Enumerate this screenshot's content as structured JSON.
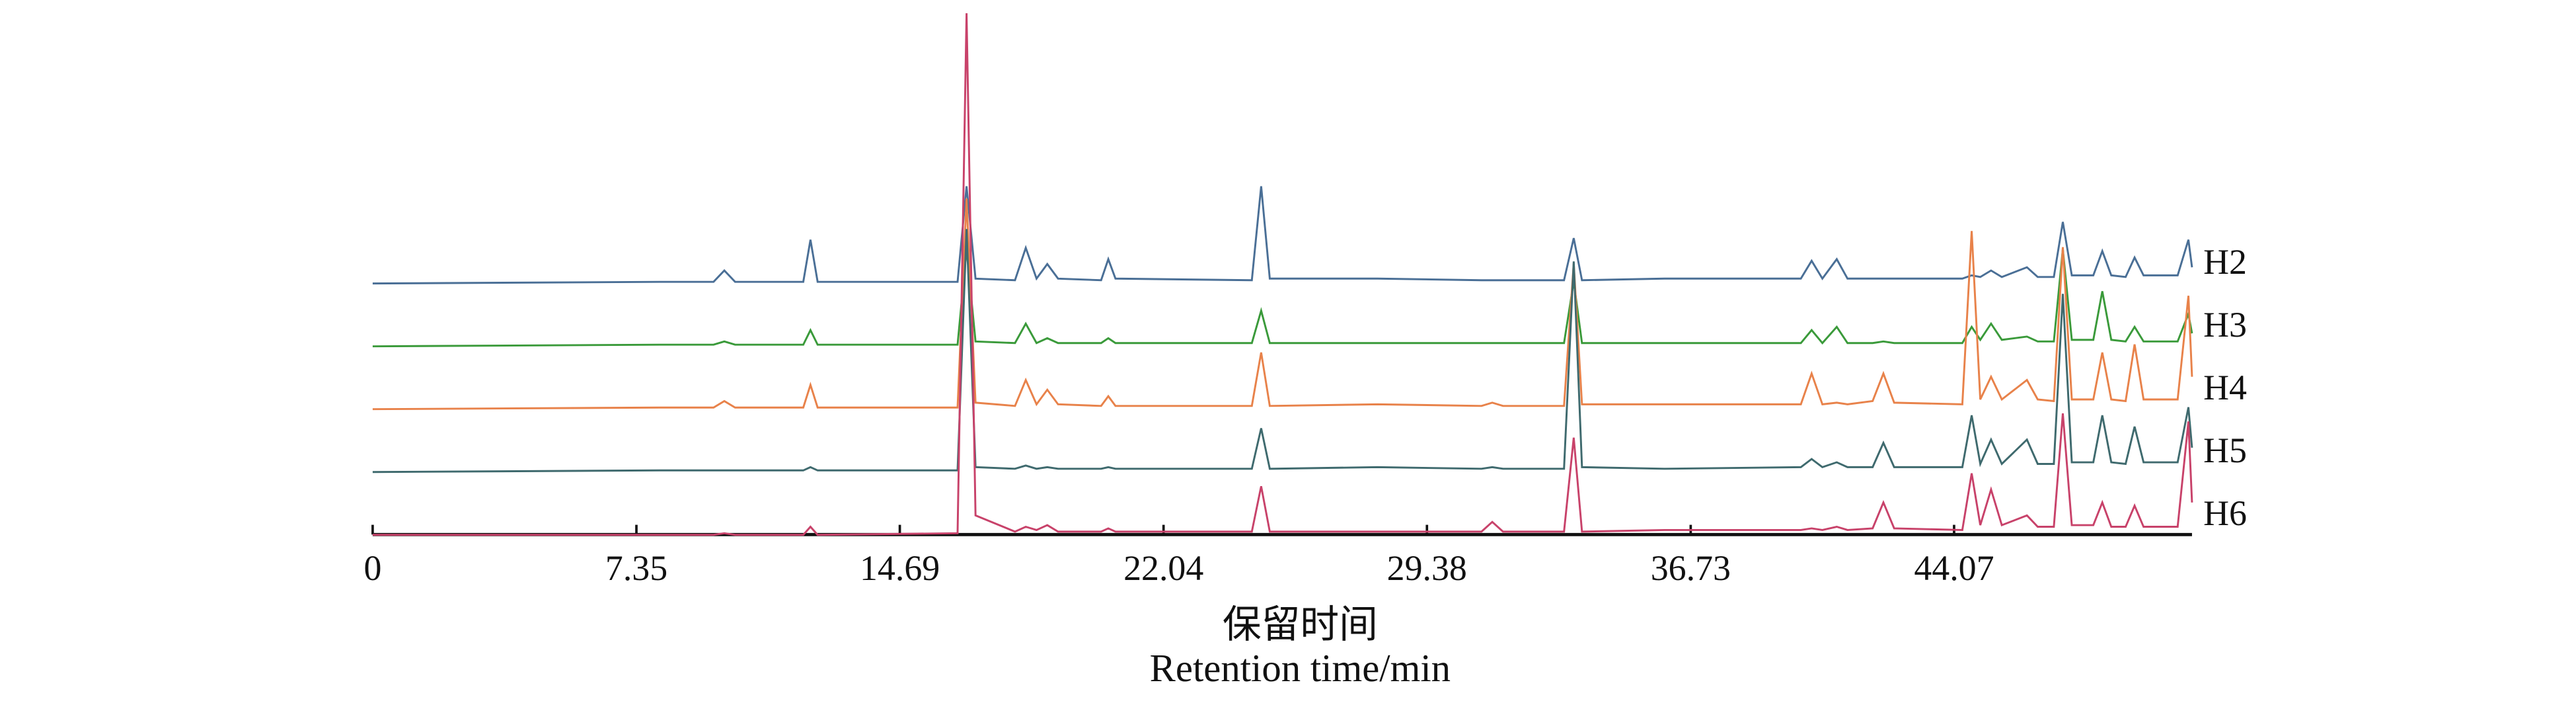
{
  "chart_data": {
    "type": "line",
    "x_label_cn": "保留时间",
    "x_label": "Retention time/min",
    "x": [
      0,
      8,
      9.5,
      9.8,
      10.1,
      12.0,
      12.2,
      12.4,
      16.3,
      16.55,
      16.8,
      17.9,
      18.2,
      18.5,
      18.8,
      19.1,
      20.3,
      20.5,
      20.7,
      24.5,
      24.76,
      25.0,
      28.0,
      30.9,
      31.2,
      31.5,
      33.2,
      33.47,
      33.7,
      36,
      39.8,
      40.1,
      40.4,
      40.8,
      41.1,
      41.8,
      42.1,
      42.4,
      44.3,
      44.56,
      44.8,
      45.1,
      45.4,
      46.1,
      46.4,
      46.85,
      47.1,
      47.35,
      47.95,
      48.2,
      48.45,
      48.85,
      49.1,
      49.35,
      50.3,
      50.6,
      50.7
    ],
    "series": [
      {
        "name": "H2",
        "color": "#4a6f96",
        "values": [
          0,
          1,
          1,
          8,
          1,
          1,
          27,
          1,
          1,
          60,
          3,
          2,
          22,
          3,
          12,
          3,
          2,
          15,
          3,
          2,
          60,
          3,
          3,
          2,
          2,
          2,
          2,
          28,
          2,
          3,
          3,
          14,
          3,
          15,
          3,
          3,
          3,
          3,
          3,
          5,
          4,
          8,
          4,
          10,
          4,
          4,
          38,
          5,
          5,
          20,
          5,
          4,
          16,
          5,
          5,
          27,
          10
        ]
      },
      {
        "name": "H3",
        "color": "#3a9a3a",
        "values": [
          0,
          1,
          1,
          3,
          1,
          1,
          10,
          1,
          1,
          60,
          3,
          2,
          14,
          2,
          5,
          2,
          2,
          5,
          2,
          2,
          22,
          2,
          2,
          2,
          2,
          2,
          2,
          40,
          2,
          2,
          2,
          10,
          2,
          12,
          2,
          2,
          3,
          2,
          2,
          12,
          4,
          14,
          4,
          6,
          3,
          3,
          60,
          4,
          4,
          34,
          4,
          3,
          12,
          3,
          3,
          20,
          8
        ]
      },
      {
        "name": "H4",
        "color": "#e8824a",
        "values": [
          0,
          1,
          1,
          5,
          1,
          1,
          15,
          1,
          1,
          130,
          4,
          2,
          18,
          3,
          12,
          3,
          2,
          8,
          2,
          2,
          35,
          2,
          3,
          2,
          4,
          2,
          2,
          90,
          3,
          3,
          3,
          22,
          3,
          4,
          3,
          5,
          22,
          4,
          3,
          110,
          6,
          20,
          6,
          18,
          6,
          5,
          100,
          6,
          6,
          35,
          6,
          5,
          40,
          6,
          6,
          70,
          20
        ]
      },
      {
        "name": "H5",
        "color": "#3f6a6e",
        "values": [
          0,
          1,
          1,
          1,
          1,
          1,
          3,
          1,
          1,
          150,
          3,
          2,
          4,
          2,
          3,
          2,
          2,
          3,
          2,
          2,
          27,
          2,
          3,
          2,
          3,
          2,
          2,
          130,
          3,
          2,
          3,
          8,
          3,
          6,
          3,
          3,
          18,
          3,
          3,
          35,
          5,
          20,
          5,
          20,
          5,
          5,
          110,
          6,
          6,
          35,
          6,
          5,
          28,
          6,
          6,
          40,
          15
        ]
      },
      {
        "name": "H6",
        "color": "#c8426a",
        "values": [
          0,
          0,
          0,
          1,
          0,
          0,
          5,
          0,
          1,
          322,
          12,
          2,
          5,
          3,
          6,
          2,
          2,
          4,
          2,
          2,
          30,
          2,
          2,
          2,
          8,
          2,
          2,
          60,
          2,
          3,
          3,
          4,
          3,
          5,
          3,
          4,
          20,
          4,
          3,
          38,
          6,
          28,
          6,
          12,
          5,
          5,
          75,
          6,
          6,
          20,
          5,
          5,
          18,
          5,
          5,
          70,
          20
        ]
      }
    ],
    "xlim": [
      0,
      50.7
    ],
    "xticks": [
      0,
      7.35,
      14.69,
      22.04,
      29.38,
      36.73,
      44.07
    ]
  }
}
